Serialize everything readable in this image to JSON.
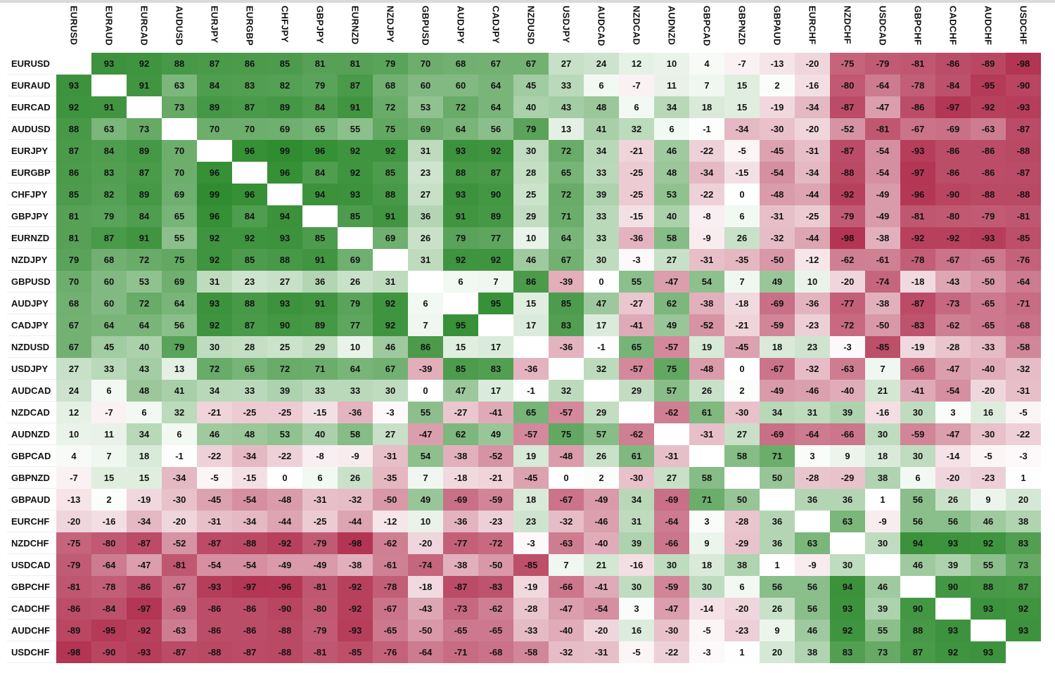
{
  "chart_data": {
    "type": "heatmap",
    "title": "",
    "colors": {
      "positive": "#2e8b2e",
      "neutral": "#ffffff",
      "negative": "#b1304f",
      "text": "#111111"
    },
    "value_range": [
      -100,
      100
    ],
    "columns": [
      "EURUSD",
      "EURAUD",
      "EURCAD",
      "AUDUSD",
      "EURJPY",
      "EURGBP",
      "CHFJPY",
      "GBPJPY",
      "EURNZD",
      "NZDJPY",
      "GBPUSD",
      "AUDJPY",
      "CADJPY",
      "NZDUSD",
      "USDJPY",
      "AUDCAD",
      "NZDCAD",
      "AUDNZD",
      "GBPCAD",
      "GBPNZD",
      "GBPAUD",
      "EURCHF",
      "NZDCHF",
      "USDCAD",
      "GBPCHF",
      "CADCHF",
      "AUDCHF",
      "USDCHF"
    ],
    "rows": [
      {
        "label": "EURUSD",
        "values": [
          null,
          93,
          92,
          88,
          87,
          86,
          85,
          81,
          81,
          79,
          70,
          68,
          67,
          67,
          27,
          24,
          12,
          10,
          4,
          -7,
          -13,
          -20,
          -75,
          -79,
          -81,
          -86,
          -89,
          -98
        ]
      },
      {
        "label": "EURAUD",
        "values": [
          93,
          null,
          91,
          63,
          84,
          83,
          82,
          79,
          87,
          68,
          60,
          60,
          64,
          45,
          33,
          6,
          -7,
          11,
          7,
          15,
          2,
          -16,
          -80,
          -64,
          -78,
          -84,
          -95,
          -90
        ]
      },
      {
        "label": "EURCAD",
        "values": [
          92,
          91,
          null,
          73,
          89,
          87,
          89,
          84,
          91,
          72,
          53,
          72,
          64,
          40,
          43,
          48,
          6,
          34,
          18,
          15,
          -19,
          -34,
          -87,
          -47,
          -86,
          -97,
          -92,
          -93
        ]
      },
      {
        "label": "AUDUSD",
        "values": [
          88,
          63,
          73,
          null,
          70,
          70,
          69,
          65,
          55,
          75,
          69,
          64,
          56,
          79,
          13,
          41,
          32,
          6,
          -1,
          -34,
          -30,
          -20,
          -52,
          -81,
          -67,
          -69,
          -63,
          -87
        ]
      },
      {
        "label": "EURJPY",
        "values": [
          87,
          84,
          89,
          70,
          null,
          96,
          99,
          96,
          92,
          92,
          31,
          93,
          92,
          30,
          72,
          34,
          -21,
          46,
          -22,
          -5,
          -45,
          -31,
          -87,
          -54,
          -93,
          -86,
          -86,
          -88
        ]
      },
      {
        "label": "EURGBP",
        "values": [
          86,
          83,
          87,
          70,
          96,
          null,
          96,
          84,
          92,
          85,
          23,
          88,
          87,
          28,
          65,
          33,
          -25,
          48,
          -34,
          -15,
          -54,
          -34,
          -88,
          -54,
          -97,
          -86,
          -86,
          -87
        ]
      },
      {
        "label": "CHFJPY",
        "values": [
          85,
          82,
          89,
          69,
          99,
          96,
          null,
          94,
          93,
          88,
          27,
          93,
          90,
          25,
          72,
          39,
          -25,
          53,
          -22,
          0,
          -48,
          -44,
          -92,
          -49,
          -96,
          -90,
          -88,
          -88
        ]
      },
      {
        "label": "GBPJPY",
        "values": [
          81,
          79,
          84,
          65,
          96,
          84,
          94,
          null,
          85,
          91,
          36,
          91,
          89,
          29,
          71,
          33,
          -15,
          40,
          -8,
          6,
          -31,
          -25,
          -79,
          -49,
          -81,
          -80,
          -79,
          -81
        ]
      },
      {
        "label": "EURNZD",
        "values": [
          81,
          87,
          91,
          55,
          92,
          92,
          93,
          85,
          null,
          69,
          26,
          79,
          77,
          10,
          64,
          33,
          -36,
          58,
          -9,
          26,
          -32,
          -44,
          -98,
          -38,
          -92,
          -92,
          -93,
          -85
        ]
      },
      {
        "label": "NZDJPY",
        "values": [
          79,
          68,
          72,
          75,
          92,
          85,
          88,
          91,
          69,
          null,
          31,
          92,
          92,
          46,
          67,
          30,
          -3,
          27,
          -31,
          -35,
          -50,
          -12,
          -62,
          -61,
          -78,
          -67,
          -65,
          -76
        ]
      },
      {
        "label": "GBPUSD",
        "values": [
          70,
          60,
          53,
          69,
          31,
          23,
          27,
          36,
          26,
          31,
          null,
          6,
          7,
          86,
          -39,
          0,
          55,
          -47,
          54,
          7,
          49,
          10,
          -20,
          -74,
          -18,
          -43,
          -50,
          -64
        ]
      },
      {
        "label": "AUDJPY",
        "values": [
          68,
          60,
          72,
          64,
          93,
          88,
          93,
          91,
          79,
          92,
          6,
          null,
          95,
          15,
          85,
          47,
          -27,
          62,
          -38,
          -18,
          -69,
          -36,
          -77,
          -38,
          -87,
          -73,
          -65,
          -71
        ]
      },
      {
        "label": "CADJPY",
        "values": [
          67,
          64,
          64,
          56,
          92,
          87,
          90,
          89,
          77,
          92,
          7,
          95,
          null,
          17,
          83,
          17,
          -41,
          49,
          -52,
          -21,
          -59,
          -23,
          -72,
          -50,
          -83,
          -62,
          -65,
          -68
        ]
      },
      {
        "label": "NZDUSD",
        "values": [
          67,
          45,
          40,
          79,
          30,
          28,
          25,
          29,
          10,
          46,
          86,
          15,
          17,
          null,
          -36,
          -1,
          65,
          -57,
          19,
          -45,
          18,
          23,
          -3,
          -85,
          -19,
          -28,
          -33,
          -58
        ]
      },
      {
        "label": "USDJPY",
        "values": [
          27,
          33,
          43,
          13,
          72,
          65,
          72,
          71,
          64,
          67,
          -39,
          85,
          83,
          -36,
          null,
          32,
          -57,
          75,
          -48,
          0,
          -67,
          -32,
          -63,
          7,
          -66,
          -47,
          -40,
          -32
        ]
      },
      {
        "label": "AUDCAD",
        "values": [
          24,
          6,
          48,
          41,
          34,
          33,
          39,
          33,
          33,
          30,
          0,
          47,
          17,
          -1,
          32,
          null,
          29,
          57,
          26,
          2,
          -49,
          -46,
          -40,
          21,
          -41,
          -54,
          -20,
          -31
        ]
      },
      {
        "label": "NZDCAD",
        "values": [
          12,
          -7,
          6,
          32,
          -21,
          -25,
          -25,
          -15,
          -36,
          -3,
          55,
          -27,
          -41,
          65,
          -57,
          29,
          null,
          -62,
          61,
          -30,
          34,
          31,
          39,
          -16,
          30,
          3,
          16,
          -5
        ]
      },
      {
        "label": "AUDNZD",
        "values": [
          10,
          11,
          34,
          6,
          46,
          48,
          53,
          40,
          58,
          27,
          -47,
          62,
          49,
          -57,
          75,
          57,
          -62,
          null,
          -31,
          27,
          -69,
          -64,
          -66,
          30,
          -59,
          -47,
          -30,
          -22
        ]
      },
      {
        "label": "GBPCAD",
        "values": [
          4,
          7,
          18,
          -1,
          -22,
          -34,
          -22,
          -8,
          -9,
          -31,
          54,
          -38,
          -52,
          19,
          -48,
          26,
          61,
          -31,
          null,
          58,
          71,
          3,
          9,
          18,
          30,
          -14,
          -5,
          -3
        ]
      },
      {
        "label": "GBPNZD",
        "values": [
          -7,
          15,
          15,
          -34,
          -5,
          -15,
          0,
          6,
          26,
          -35,
          7,
          -18,
          -21,
          -45,
          0,
          2,
          -30,
          27,
          58,
          null,
          50,
          -28,
          -29,
          38,
          6,
          -20,
          -23,
          1
        ]
      },
      {
        "label": "GBPAUD",
        "values": [
          -13,
          2,
          -19,
          -30,
          -45,
          -54,
          -48,
          -31,
          -32,
          -50,
          49,
          -69,
          -59,
          18,
          -67,
          -49,
          34,
          -69,
          71,
          50,
          null,
          36,
          36,
          1,
          56,
          26,
          9,
          20
        ]
      },
      {
        "label": "EURCHF",
        "values": [
          -20,
          -16,
          -34,
          -20,
          -31,
          -34,
          -44,
          -25,
          -44,
          -12,
          10,
          -36,
          -23,
          23,
          -32,
          -46,
          31,
          -64,
          3,
          -28,
          36,
          null,
          63,
          -9,
          56,
          56,
          46,
          38
        ]
      },
      {
        "label": "NZDCHF",
        "values": [
          -75,
          -80,
          -87,
          -52,
          -87,
          -88,
          -92,
          -79,
          -98,
          -62,
          -20,
          -77,
          -72,
          -3,
          -63,
          -40,
          39,
          -66,
          9,
          -29,
          36,
          63,
          null,
          30,
          94,
          93,
          92,
          83
        ]
      },
      {
        "label": "USDCAD",
        "values": [
          -79,
          -64,
          -47,
          -81,
          -54,
          -54,
          -49,
          -49,
          -38,
          -61,
          -74,
          -38,
          -50,
          -85,
          7,
          21,
          -16,
          30,
          18,
          38,
          1,
          -9,
          30,
          null,
          46,
          39,
          55,
          73
        ]
      },
      {
        "label": "GBPCHF",
        "values": [
          -81,
          -78,
          -86,
          -67,
          -93,
          -97,
          -96,
          -81,
          -92,
          -78,
          -18,
          -87,
          -83,
          -19,
          -66,
          -41,
          30,
          -59,
          30,
          6,
          56,
          56,
          94,
          46,
          null,
          90,
          88,
          87
        ]
      },
      {
        "label": "CADCHF",
        "values": [
          -86,
          -84,
          -97,
          -69,
          -86,
          -86,
          -90,
          -80,
          -92,
          -67,
          -43,
          -73,
          -62,
          -28,
          -47,
          -54,
          3,
          -47,
          -14,
          -20,
          26,
          56,
          93,
          39,
          90,
          null,
          93,
          92
        ]
      },
      {
        "label": "AUDCHF",
        "values": [
          -89,
          -95,
          -92,
          -63,
          -86,
          -86,
          -88,
          -79,
          -93,
          -65,
          -50,
          -65,
          -65,
          -33,
          -40,
          -20,
          16,
          -30,
          -5,
          -23,
          9,
          46,
          92,
          55,
          88,
          93,
          null,
          93
        ]
      },
      {
        "label": "USDCHF",
        "values": [
          -98,
          -90,
          -93,
          -87,
          -88,
          -87,
          -88,
          -81,
          -85,
          -76,
          -64,
          -71,
          -68,
          -58,
          -32,
          -31,
          -5,
          -22,
          -3,
          1,
          20,
          38,
          83,
          73,
          87,
          92,
          93,
          null
        ]
      }
    ]
  }
}
